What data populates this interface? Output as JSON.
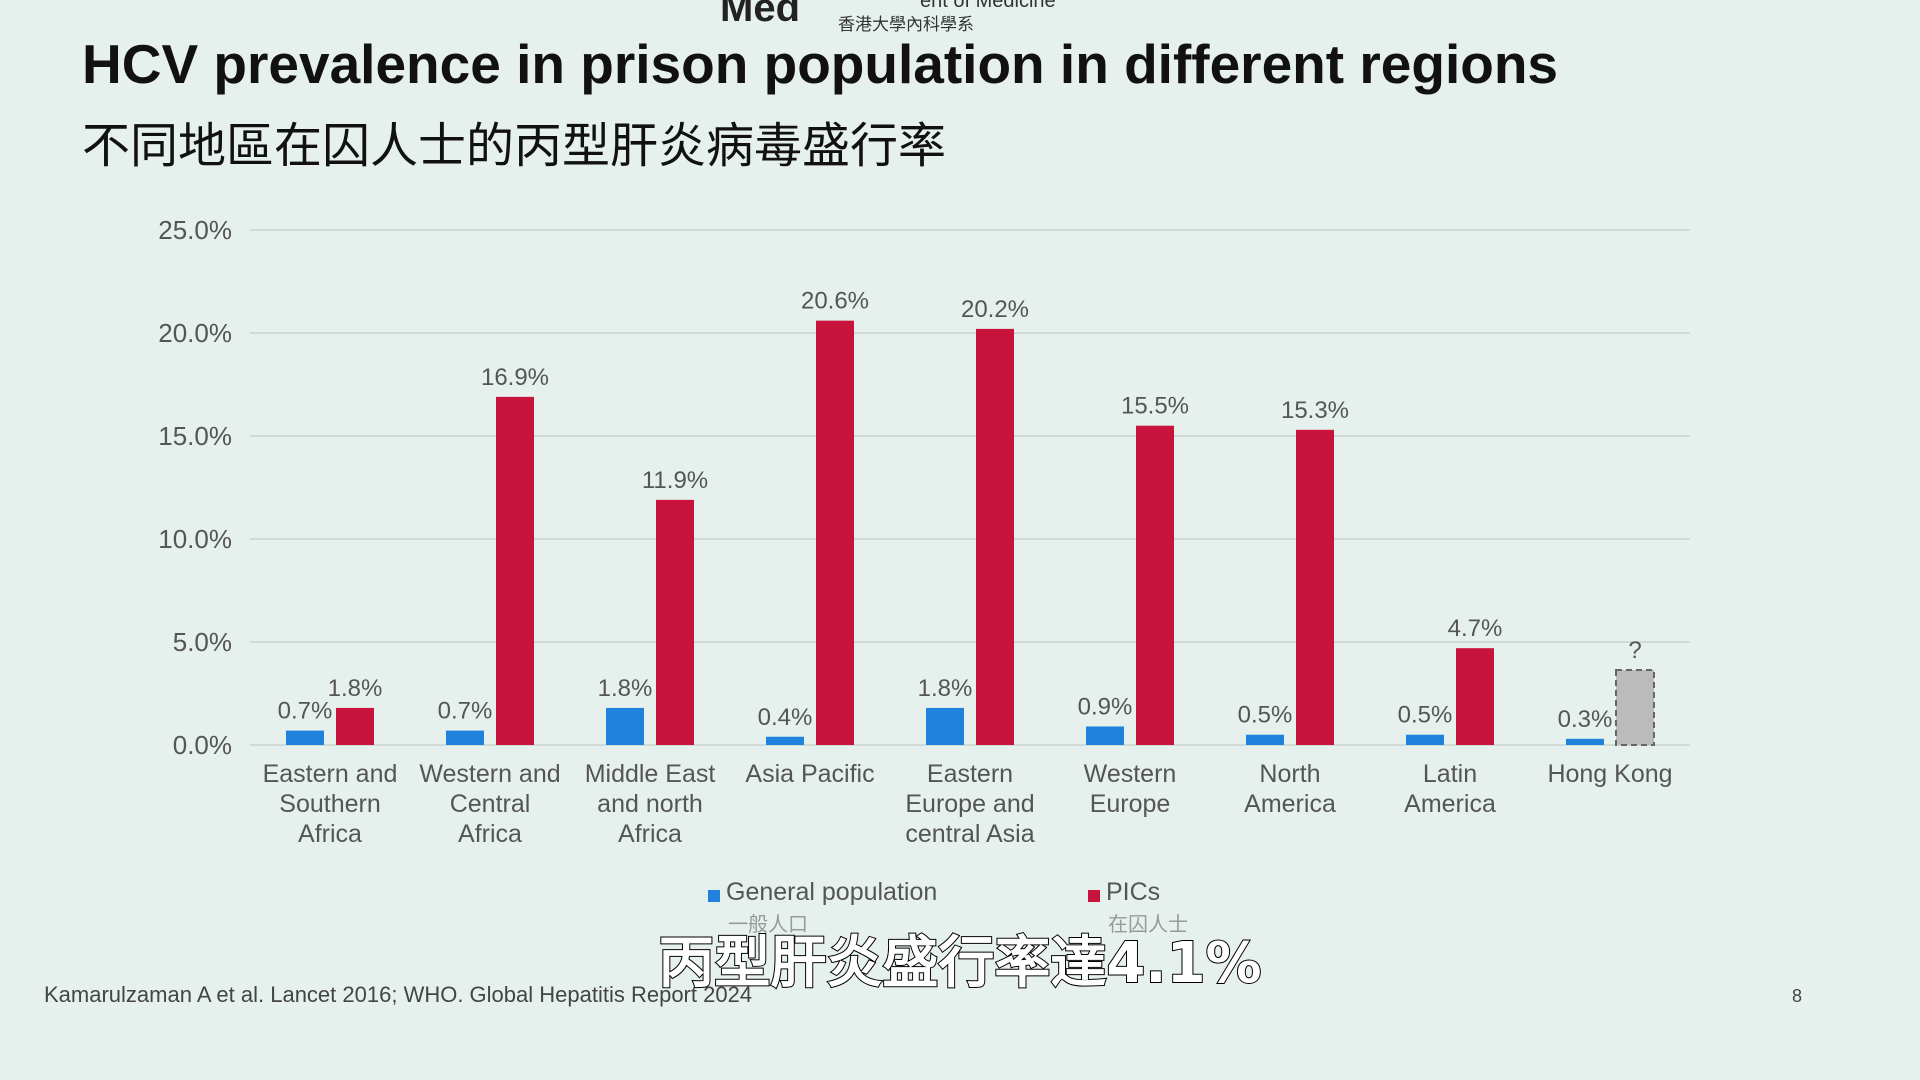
{
  "header": {
    "logo_text": "Med",
    "department_en": "ent of Medicine",
    "department_zh": "香港大學內科學系"
  },
  "chart_data": {
    "type": "bar",
    "title": "HCV prevalence in prison population in different regions",
    "subtitle": "不同地區在囚人士的丙型肝炎病毒盛行率",
    "categories": [
      "Eastern and Southern Africa",
      "Western and Central Africa",
      "Middle East and north Africa",
      "Asia Pacific",
      "Eastern Europe and central Asia",
      "Western Europe",
      "North America",
      "Latin America",
      "Hong Kong"
    ],
    "series": [
      {
        "name": "General population",
        "name_zh": "一般人口",
        "color": "#1f82dc",
        "values": [
          0.7,
          0.7,
          1.8,
          0.4,
          1.8,
          0.9,
          0.5,
          0.5,
          0.3
        ],
        "value_labels": [
          "0.7%",
          "0.7%",
          "1.8%",
          "0.4%",
          "1.8%",
          "0.9%",
          "0.5%",
          "0.5%",
          "0.3%"
        ]
      },
      {
        "name": "PICs",
        "name_zh": "在囚人士",
        "color": "#c8143c",
        "values": [
          1.8,
          16.9,
          11.9,
          20.6,
          20.2,
          15.5,
          15.3,
          4.7,
          null
        ],
        "value_labels": [
          "1.8%",
          "16.9%",
          "11.9%",
          "20.6%",
          "20.2%",
          "15.5%",
          "15.3%",
          "4.7%",
          "?"
        ]
      }
    ],
    "ylim": [
      0,
      25
    ],
    "yticks": [
      {
        "value": 0,
        "label": "0.0%"
      },
      {
        "value": 5,
        "label": "5.0%"
      },
      {
        "value": 10,
        "label": "10.0%"
      },
      {
        "value": 15,
        "label": "15.0%"
      },
      {
        "value": 20,
        "label": "20.0%"
      },
      {
        "value": 25,
        "label": "25.0%"
      }
    ],
    "grid": true,
    "legend": "bottom"
  },
  "source": "Kamarulzaman A et al. Lancet 2016; WHO. Global Hepatitis Report 2024",
  "page_number": "8",
  "caption": "丙型肝炎盛行率達4.1%"
}
